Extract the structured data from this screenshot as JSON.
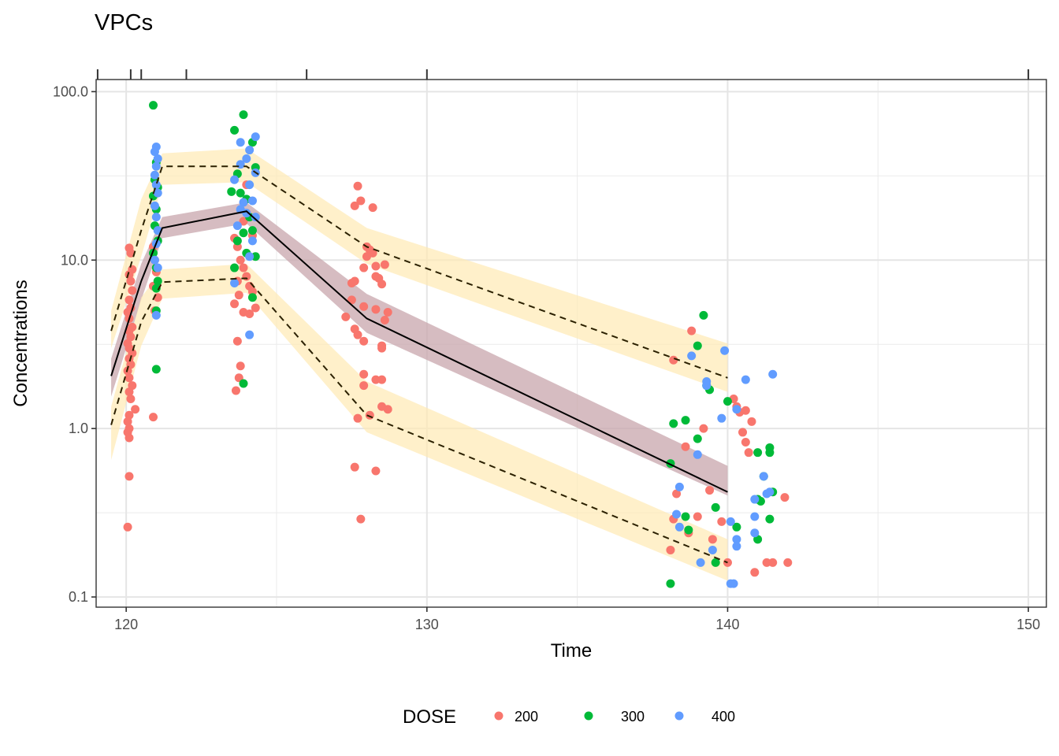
{
  "chart_data": {
    "type": "scatter",
    "title": "VPCs",
    "xlabel": "Time",
    "ylabel": "Concentrations",
    "x_scale": "linear",
    "y_scale": "log10",
    "xlim": [
      119.0,
      150.6
    ],
    "ylim": [
      0.087,
      118
    ],
    "x_ticks": [
      120,
      130,
      140,
      150
    ],
    "x_tick_labels": [
      "120",
      "130",
      "140",
      "150"
    ],
    "y_ticks": [
      0.1,
      1,
      10,
      100
    ],
    "y_tick_labels": [
      "0.1",
      "1.0",
      "10.0",
      "100.0"
    ],
    "y_minor_gridlines": [
      0.316,
      3.16,
      31.6
    ],
    "x_minor_gridlines": [
      125,
      135,
      145
    ],
    "grid": true,
    "top_rug_ticks": [
      119.05,
      120.15,
      120.5,
      122,
      126,
      130,
      150
    ],
    "legend": {
      "title": "DOSE",
      "position": "bottom",
      "entries": [
        {
          "label": "200",
          "color": "#F8766D"
        },
        {
          "label": "300",
          "color": "#00BA38"
        },
        {
          "label": "400",
          "color": "#619CFF"
        }
      ]
    },
    "bands": [
      {
        "name": "p95-ci",
        "fill": "#FFE9B3",
        "opacity": 0.7,
        "x": [
          119.5,
          120.5,
          121.2,
          124.0,
          128.0,
          140.0
        ],
        "lower": [
          3.0,
          10.5,
          28.0,
          29.0,
          9.5,
          1.65
        ],
        "upper": [
          5.0,
          23.0,
          43.0,
          46.0,
          15.5,
          3.2
        ]
      },
      {
        "name": "p50-ci",
        "fill": "#C8A5AC",
        "opacity": 0.75,
        "x": [
          119.5,
          120.5,
          121.2,
          124.0,
          128.0,
          140.0
        ],
        "lower": [
          1.55,
          5.8,
          13.5,
          16.5,
          3.7,
          0.4
        ],
        "upper": [
          2.6,
          9.5,
          18.0,
          22.0,
          6.3,
          0.6
        ]
      },
      {
        "name": "p5-ci",
        "fill": "#FFE9B3",
        "opacity": 0.7,
        "x": [
          119.5,
          120.5,
          121.2,
          124.0,
          128.0,
          140.0
        ],
        "lower": [
          0.65,
          3.1,
          5.9,
          6.4,
          0.95,
          0.125
        ],
        "upper": [
          1.35,
          6.0,
          8.8,
          9.5,
          1.9,
          0.22
        ]
      }
    ],
    "lines": [
      {
        "name": "p95-observed",
        "dash": true,
        "color": "#2b2000",
        "x": [
          119.5,
          120.5,
          121.2,
          124.0,
          128.0,
          140.0
        ],
        "y": [
          3.8,
          15.0,
          36.0,
          36.0,
          12.0,
          2.0
        ]
      },
      {
        "name": "p50-observed",
        "dash": false,
        "color": "#000000",
        "x": [
          119.5,
          120.5,
          121.2,
          124.0,
          128.0,
          140.0
        ],
        "y": [
          2.05,
          7.5,
          15.5,
          19.5,
          4.5,
          0.42
        ]
      },
      {
        "name": "p5-observed",
        "dash": true,
        "color": "#2b2000",
        "x": [
          119.5,
          120.5,
          121.2,
          124.0,
          128.0,
          140.0
        ],
        "y": [
          1.05,
          4.3,
          7.4,
          7.8,
          1.2,
          0.16
        ]
      }
    ],
    "series": [
      {
        "name": "200",
        "color": "#F8766D",
        "points": [
          [
            120.1,
            11.8
          ],
          [
            120.15,
            11.0
          ],
          [
            120.2,
            8.8
          ],
          [
            120.1,
            8.2
          ],
          [
            120.15,
            7.5
          ],
          [
            120.2,
            6.6
          ],
          [
            120.1,
            5.8
          ],
          [
            120.15,
            5.2
          ],
          [
            120.05,
            4.9
          ],
          [
            120.1,
            4.5
          ],
          [
            120.2,
            4.0
          ],
          [
            120.1,
            3.8
          ],
          [
            120.15,
            3.5
          ],
          [
            120.05,
            3.2
          ],
          [
            120.1,
            3.0
          ],
          [
            120.2,
            2.8
          ],
          [
            120.1,
            2.6
          ],
          [
            120.15,
            2.4
          ],
          [
            120.05,
            2.2
          ],
          [
            120.1,
            2.0
          ],
          [
            120.2,
            1.8
          ],
          [
            120.1,
            1.65
          ],
          [
            120.15,
            1.5
          ],
          [
            120.3,
            1.3
          ],
          [
            120.1,
            1.2
          ],
          [
            120.05,
            1.1
          ],
          [
            120.1,
            1.0
          ],
          [
            120.05,
            0.95
          ],
          [
            120.1,
            0.88
          ],
          [
            120.1,
            0.52
          ],
          [
            120.05,
            0.26
          ],
          [
            120.9,
            12.0
          ],
          [
            120.95,
            10.0
          ],
          [
            121.0,
            8.5
          ],
          [
            120.9,
            7.0
          ],
          [
            121.05,
            6.0
          ],
          [
            120.95,
            5.0
          ],
          [
            120.9,
            1.17
          ],
          [
            123.6,
            13.5
          ],
          [
            123.7,
            12.0
          ],
          [
            123.8,
            10.0
          ],
          [
            123.9,
            9.0
          ],
          [
            124.0,
            8.0
          ],
          [
            123.7,
            7.5
          ],
          [
            124.1,
            7.0
          ],
          [
            124.2,
            6.5
          ],
          [
            123.75,
            6.2
          ],
          [
            124.3,
            5.2
          ],
          [
            123.6,
            5.5
          ],
          [
            123.9,
            4.9
          ],
          [
            124.1,
            4.8
          ],
          [
            123.7,
            3.3
          ],
          [
            123.8,
            2.35
          ],
          [
            123.75,
            2.0
          ],
          [
            123.65,
            1.68
          ],
          [
            124.0,
            28.0
          ],
          [
            123.9,
            17.0
          ],
          [
            124.2,
            14.0
          ],
          [
            127.7,
            27.5
          ],
          [
            127.6,
            21.0
          ],
          [
            127.8,
            22.5
          ],
          [
            128.2,
            20.5
          ],
          [
            128.0,
            12.0
          ],
          [
            128.1,
            11.5
          ],
          [
            128.2,
            11.0
          ],
          [
            128.0,
            10.5
          ],
          [
            127.9,
            9.0
          ],
          [
            128.3,
            9.2
          ],
          [
            128.6,
            9.4
          ],
          [
            128.3,
            8.0
          ],
          [
            128.4,
            7.8
          ],
          [
            128.5,
            7.2
          ],
          [
            127.5,
            7.3
          ],
          [
            127.6,
            7.5
          ],
          [
            127.5,
            5.8
          ],
          [
            127.9,
            5.3
          ],
          [
            128.3,
            5.1
          ],
          [
            128.7,
            4.9
          ],
          [
            127.3,
            4.6
          ],
          [
            128.6,
            4.4
          ],
          [
            127.6,
            3.9
          ],
          [
            127.7,
            3.6
          ],
          [
            128.5,
            3.1
          ],
          [
            128.5,
            3.0
          ],
          [
            127.9,
            3.3
          ],
          [
            127.9,
            2.1
          ],
          [
            127.9,
            1.8
          ],
          [
            128.3,
            1.95
          ],
          [
            128.5,
            1.95
          ],
          [
            128.5,
            1.35
          ],
          [
            128.7,
            1.3
          ],
          [
            127.7,
            1.15
          ],
          [
            128.1,
            1.2
          ],
          [
            127.6,
            0.59
          ],
          [
            128.3,
            0.56
          ],
          [
            127.8,
            0.29
          ],
          [
            138.8,
            3.8
          ],
          [
            138.2,
            2.55
          ],
          [
            139.2,
            1.0
          ],
          [
            138.6,
            0.78
          ],
          [
            140.3,
            1.35
          ],
          [
            140.4,
            1.25
          ],
          [
            140.2,
            1.5
          ],
          [
            140.5,
            0.95
          ],
          [
            140.6,
            0.83
          ],
          [
            140.7,
            0.72
          ],
          [
            138.3,
            0.41
          ],
          [
            139.4,
            0.43
          ],
          [
            139.8,
            0.28
          ],
          [
            138.2,
            0.29
          ],
          [
            139.0,
            0.3
          ],
          [
            138.7,
            0.24
          ],
          [
            139.5,
            0.22
          ],
          [
            138.1,
            0.19
          ],
          [
            140.0,
            0.16
          ],
          [
            140.9,
            0.14
          ],
          [
            141.3,
            0.16
          ],
          [
            141.5,
            0.16
          ],
          [
            142.0,
            0.16
          ],
          [
            141.9,
            0.39
          ],
          [
            140.6,
            1.28
          ],
          [
            140.8,
            1.1
          ]
        ]
      },
      {
        "name": "300",
        "color": "#00BA38",
        "points": [
          [
            120.9,
            83.0
          ],
          [
            121.0,
            38.0
          ],
          [
            120.95,
            30.0
          ],
          [
            121.05,
            27.0
          ],
          [
            120.9,
            24.0
          ],
          [
            121.0,
            20.0
          ],
          [
            120.95,
            16.0
          ],
          [
            121.05,
            13.0
          ],
          [
            120.9,
            11.0
          ],
          [
            121.0,
            9.0
          ],
          [
            121.05,
            7.5
          ],
          [
            121.0,
            6.8
          ],
          [
            121.0,
            5.0
          ],
          [
            121.0,
            2.25
          ],
          [
            123.9,
            73.0
          ],
          [
            123.6,
            59.0
          ],
          [
            124.2,
            50.0
          ],
          [
            124.3,
            35.5
          ],
          [
            123.7,
            32.5
          ],
          [
            123.5,
            25.5
          ],
          [
            123.8,
            25.0
          ],
          [
            124.0,
            23.0
          ],
          [
            124.1,
            18.0
          ],
          [
            124.2,
            15.0
          ],
          [
            123.9,
            14.5
          ],
          [
            123.7,
            13.0
          ],
          [
            124.3,
            10.5
          ],
          [
            124.0,
            11.0
          ],
          [
            123.6,
            9.0
          ],
          [
            124.2,
            6.0
          ],
          [
            123.9,
            1.85
          ],
          [
            139.2,
            4.7
          ],
          [
            139.0,
            3.1
          ],
          [
            139.3,
            1.8
          ],
          [
            139.4,
            1.7
          ],
          [
            140.0,
            1.45
          ],
          [
            138.2,
            1.07
          ],
          [
            138.6,
            1.12
          ],
          [
            139.0,
            0.87
          ],
          [
            138.1,
            0.62
          ],
          [
            139.6,
            0.34
          ],
          [
            138.6,
            0.3
          ],
          [
            138.7,
            0.25
          ],
          [
            139.6,
            0.16
          ],
          [
            138.1,
            0.12
          ],
          [
            140.3,
            0.26
          ],
          [
            141.0,
            0.72
          ],
          [
            141.4,
            0.77
          ],
          [
            141.4,
            0.72
          ],
          [
            141.5,
            0.42
          ],
          [
            141.0,
            0.38
          ],
          [
            141.4,
            0.29
          ],
          [
            141.0,
            0.22
          ],
          [
            141.1,
            0.37
          ],
          [
            141.2,
            0.52
          ]
        ]
      },
      {
        "name": "400",
        "color": "#619CFF",
        "points": [
          [
            121.0,
            47.0
          ],
          [
            120.95,
            44.0
          ],
          [
            121.05,
            40.0
          ],
          [
            121.0,
            36.0
          ],
          [
            120.95,
            32.0
          ],
          [
            121.0,
            28.0
          ],
          [
            121.05,
            25.0
          ],
          [
            120.95,
            21.0
          ],
          [
            121.0,
            18.0
          ],
          [
            121.05,
            15.0
          ],
          [
            121.0,
            12.5
          ],
          [
            120.95,
            10.0
          ],
          [
            121.05,
            9.0
          ],
          [
            121.0,
            4.7
          ],
          [
            124.3,
            54.0
          ],
          [
            123.8,
            50.0
          ],
          [
            124.1,
            45.0
          ],
          [
            124.0,
            40.0
          ],
          [
            123.8,
            37.0
          ],
          [
            124.3,
            33.0
          ],
          [
            123.6,
            30.0
          ],
          [
            124.1,
            28.0
          ],
          [
            123.9,
            22.0
          ],
          [
            124.2,
            22.5
          ],
          [
            123.8,
            20.0
          ],
          [
            124.0,
            19.0
          ],
          [
            124.3,
            18.0
          ],
          [
            123.7,
            16.0
          ],
          [
            124.2,
            13.0
          ],
          [
            124.1,
            10.5
          ],
          [
            123.6,
            7.3
          ],
          [
            124.1,
            3.6
          ],
          [
            138.8,
            2.7
          ],
          [
            139.9,
            2.9
          ],
          [
            139.3,
            1.9
          ],
          [
            139.3,
            1.8
          ],
          [
            139.8,
            1.15
          ],
          [
            140.3,
            1.3
          ],
          [
            140.6,
            1.95
          ],
          [
            141.5,
            2.1
          ],
          [
            139.0,
            0.7
          ],
          [
            138.4,
            0.45
          ],
          [
            138.3,
            0.31
          ],
          [
            138.4,
            0.26
          ],
          [
            139.5,
            0.19
          ],
          [
            139.1,
            0.16
          ],
          [
            140.1,
            0.28
          ],
          [
            140.3,
            0.22
          ],
          [
            140.3,
            0.2
          ],
          [
            140.2,
            0.12
          ],
          [
            141.2,
            0.52
          ],
          [
            140.9,
            0.38
          ],
          [
            141.3,
            0.41
          ],
          [
            141.4,
            0.42
          ],
          [
            140.9,
            0.3
          ],
          [
            140.9,
            0.24
          ],
          [
            140.1,
            0.12
          ]
        ]
      }
    ]
  }
}
